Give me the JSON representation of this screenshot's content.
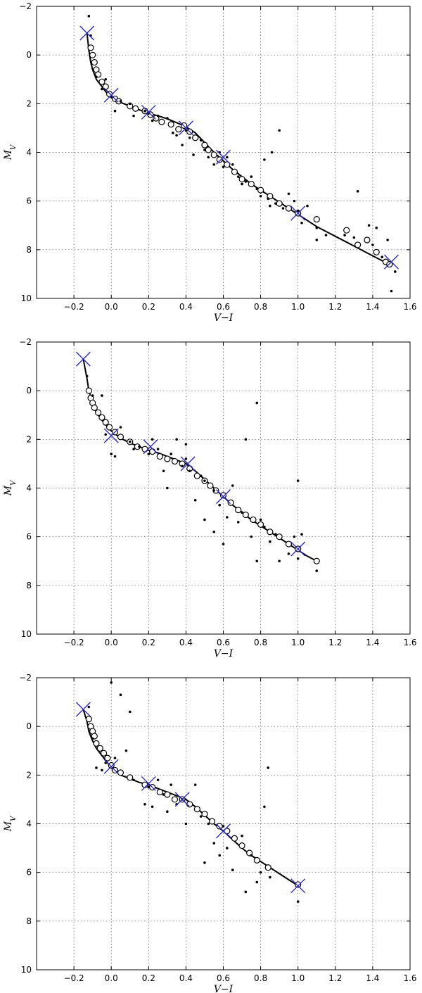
{
  "chart_data": [
    {
      "type": "scatter",
      "xlabel": "V−I",
      "ylabel": "M_V",
      "xlim": [
        -0.4,
        1.6
      ],
      "ylim": [
        10,
        -2
      ],
      "y_inverted": true,
      "grid": true,
      "xticks": [
        -0.2,
        0.0,
        0.2,
        0.4,
        0.6,
        0.8,
        1.0,
        1.2,
        1.4,
        1.6
      ],
      "yticks": [
        -2,
        0,
        2,
        4,
        6,
        8,
        10
      ],
      "series": [
        {
          "kind": "curve",
          "x": [
            -0.13,
            -0.12,
            -0.11,
            -0.1,
            -0.08,
            -0.05,
            -0.02,
            0.0,
            0.05,
            0.1,
            0.15,
            0.2,
            0.25,
            0.3,
            0.35,
            0.4,
            0.45,
            0.5,
            0.55,
            0.6,
            0.65,
            0.7,
            0.75,
            0.8,
            0.85,
            0.9,
            0.95,
            1.0,
            1.05,
            1.1,
            1.15,
            1.2,
            1.25,
            1.3,
            1.35,
            1.4,
            1.45,
            1.5
          ],
          "y": [
            -0.9,
            -0.2,
            0.3,
            0.6,
            1.0,
            1.3,
            1.6,
            1.75,
            1.95,
            2.1,
            2.25,
            2.4,
            2.5,
            2.62,
            2.78,
            2.95,
            3.2,
            3.6,
            4.0,
            4.35,
            4.7,
            5.0,
            5.3,
            5.55,
            5.8,
            6.05,
            6.3,
            6.55,
            6.8,
            7.05,
            7.25,
            7.45,
            7.65,
            7.85,
            8.05,
            8.25,
            8.45,
            8.65
          ]
        },
        {
          "kind": "open-circles",
          "x": [
            -0.11,
            -0.1,
            -0.09,
            -0.08,
            -0.07,
            -0.05,
            -0.03,
            -0.01,
            0.02,
            0.04,
            0.1,
            0.13,
            0.18,
            0.21,
            0.24,
            0.27,
            0.32,
            0.36,
            0.39,
            0.42,
            0.45,
            0.5,
            0.52,
            0.55,
            0.58,
            0.62,
            0.66,
            0.7,
            0.75,
            0.8,
            0.85,
            0.9,
            0.95,
            1.0,
            1.1,
            1.26,
            1.32,
            1.37,
            1.42,
            1.47,
            1.49
          ],
          "y": [
            -0.3,
            0.0,
            0.3,
            0.6,
            0.8,
            1.1,
            1.3,
            1.6,
            1.8,
            1.9,
            2.1,
            2.2,
            2.3,
            2.45,
            2.6,
            2.75,
            2.85,
            3.05,
            2.9,
            3.15,
            3.4,
            3.7,
            3.9,
            4.1,
            4.3,
            4.5,
            4.8,
            5.1,
            5.3,
            5.55,
            5.8,
            6.1,
            6.3,
            6.5,
            6.75,
            7.2,
            7.8,
            7.6,
            8.1,
            8.5,
            8.6
          ]
        },
        {
          "kind": "small-dots",
          "x": [
            -0.12,
            -0.11,
            -0.08,
            -0.05,
            -0.03,
            0.0,
            0.02,
            0.05,
            0.1,
            0.12,
            0.18,
            0.2,
            0.22,
            0.25,
            0.3,
            0.33,
            0.35,
            0.38,
            0.4,
            0.42,
            0.44,
            0.48,
            0.5,
            0.52,
            0.55,
            0.58,
            0.6,
            0.62,
            0.65,
            0.68,
            0.7,
            0.72,
            0.75,
            0.78,
            0.8,
            0.82,
            0.84,
            0.85,
            0.86,
            0.88,
            0.9,
            0.92,
            0.95,
            0.98,
            1.0,
            1.02,
            1.05,
            1.1,
            1.1,
            1.15,
            1.25,
            1.3,
            1.32,
            1.38,
            1.4,
            1.42,
            1.45,
            1.48,
            1.5,
            1.52
          ],
          "y": [
            -1.6,
            -0.8,
            0.9,
            1.4,
            1.0,
            1.7,
            2.3,
            1.9,
            2.0,
            2.5,
            2.3,
            2.4,
            2.7,
            2.5,
            2.6,
            3.2,
            3.3,
            3.7,
            3.1,
            3.4,
            4.1,
            3.5,
            3.9,
            4.2,
            4.5,
            4.0,
            4.6,
            4.2,
            4.5,
            5.0,
            5.3,
            5.2,
            5.0,
            5.5,
            5.8,
            4.3,
            5.9,
            6.2,
            4.0,
            6.1,
            3.1,
            6.3,
            5.7,
            6.0,
            6.4,
            6.9,
            6.2,
            7.1,
            7.6,
            7.4,
            7.4,
            7.5,
            5.6,
            7.0,
            7.8,
            7.1,
            8.3,
            7.6,
            9.7,
            8.9
          ]
        },
        {
          "kind": "crosses",
          "x": [
            -0.13,
            0.0,
            0.2,
            0.4,
            0.6,
            1.0,
            1.5
          ],
          "y": [
            -0.9,
            1.65,
            2.35,
            3.0,
            4.2,
            6.5,
            8.5
          ]
        }
      ]
    },
    {
      "type": "scatter",
      "xlabel": "V−I",
      "ylabel": "M_V",
      "xlim": [
        -0.4,
        1.6
      ],
      "ylim": [
        10,
        -2
      ],
      "y_inverted": true,
      "grid": true,
      "xticks": [
        -0.2,
        0.0,
        0.2,
        0.4,
        0.6,
        0.8,
        1.0,
        1.2,
        1.4,
        1.6
      ],
      "yticks": [
        -2,
        0,
        2,
        4,
        6,
        8,
        10
      ],
      "series": [
        {
          "kind": "curve",
          "x": [
            -0.15,
            -0.13,
            -0.12,
            -0.1,
            -0.08,
            -0.05,
            -0.02,
            0.0,
            0.05,
            0.1,
            0.15,
            0.2,
            0.25,
            0.3,
            0.35,
            0.4,
            0.45,
            0.5,
            0.55,
            0.6,
            0.65,
            0.7,
            0.75,
            0.8,
            0.85,
            0.9,
            0.95,
            1.0,
            1.05,
            1.1
          ],
          "y": [
            -1.3,
            -0.5,
            0.0,
            0.5,
            0.9,
            1.2,
            1.5,
            1.65,
            1.95,
            2.15,
            2.3,
            2.45,
            2.55,
            2.7,
            2.85,
            3.0,
            3.3,
            3.65,
            4.0,
            4.35,
            4.7,
            5.0,
            5.3,
            5.55,
            5.8,
            6.05,
            6.3,
            6.55,
            6.8,
            7.0
          ]
        },
        {
          "kind": "open-circles",
          "x": [
            -0.12,
            -0.11,
            -0.1,
            -0.09,
            -0.07,
            -0.05,
            -0.03,
            -0.01,
            0.02,
            0.05,
            0.1,
            0.14,
            0.18,
            0.22,
            0.26,
            0.3,
            0.34,
            0.38,
            0.42,
            0.46,
            0.5,
            0.53,
            0.56,
            0.6,
            0.64,
            0.68,
            0.72,
            0.76,
            0.8,
            0.85,
            0.9,
            0.95,
            1.0,
            1.1
          ],
          "y": [
            0.0,
            0.3,
            0.5,
            0.7,
            0.9,
            1.1,
            1.3,
            1.5,
            1.7,
            1.9,
            2.1,
            2.3,
            2.4,
            2.5,
            2.7,
            2.8,
            2.9,
            3.0,
            3.2,
            3.5,
            3.7,
            3.9,
            4.1,
            4.3,
            4.6,
            4.9,
            5.1,
            5.3,
            5.5,
            5.8,
            6.0,
            6.3,
            6.5,
            7.0
          ]
        },
        {
          "kind": "small-dots",
          "x": [
            -0.13,
            -0.1,
            -0.05,
            -0.03,
            0.0,
            0.02,
            0.05,
            0.1,
            0.12,
            0.15,
            0.2,
            0.22,
            0.25,
            0.28,
            0.3,
            0.32,
            0.35,
            0.38,
            0.4,
            0.4,
            0.42,
            0.45,
            0.48,
            0.5,
            0.5,
            0.55,
            0.55,
            0.58,
            0.6,
            0.62,
            0.65,
            0.68,
            0.7,
            0.72,
            0.75,
            0.78,
            0.78,
            0.8,
            0.82,
            0.85,
            0.88,
            0.9,
            0.95,
            0.98,
            1.0,
            1.0,
            1.02,
            1.1
          ],
          "y": [
            -0.6,
            0.2,
            0.2,
            1.8,
            2.6,
            2.7,
            1.5,
            2.1,
            2.4,
            2.3,
            2.6,
            2.0,
            2.4,
            3.3,
            4.0,
            2.6,
            2.0,
            3.1,
            2.2,
            2.8,
            3.3,
            4.5,
            3.5,
            5.3,
            3.7,
            5.8,
            4.1,
            4.7,
            6.3,
            5.2,
            3.9,
            5.4,
            5.0,
            2.0,
            6.0,
            0.5,
            7.0,
            5.3,
            5.6,
            6.2,
            5.9,
            7.0,
            6.7,
            6.0,
            3.7,
            6.9,
            5.9,
            7.4
          ]
        },
        {
          "kind": "crosses",
          "x": [
            -0.15,
            0.0,
            0.21,
            0.41,
            0.6,
            1.0
          ],
          "y": [
            -1.3,
            1.85,
            2.3,
            3.0,
            4.35,
            6.5
          ]
        }
      ]
    },
    {
      "type": "scatter",
      "xlabel": "V−I",
      "ylabel": "M_V",
      "xlim": [
        -0.4,
        1.6
      ],
      "ylim": [
        10,
        -2
      ],
      "y_inverted": true,
      "grid": true,
      "xticks": [
        -0.2,
        0.0,
        0.2,
        0.4,
        0.6,
        0.8,
        1.0,
        1.2,
        1.4,
        1.6
      ],
      "yticks": [
        -2,
        0,
        2,
        4,
        6,
        8,
        10
      ],
      "series": [
        {
          "kind": "curve",
          "x": [
            -0.15,
            -0.13,
            -0.12,
            -0.1,
            -0.08,
            -0.05,
            -0.02,
            0.0,
            0.05,
            0.1,
            0.15,
            0.2,
            0.25,
            0.3,
            0.35,
            0.4,
            0.45,
            0.5,
            0.55,
            0.6,
            0.65,
            0.7,
            0.75,
            0.8,
            0.85,
            0.9,
            0.95,
            1.0
          ],
          "y": [
            -0.7,
            -0.2,
            0.2,
            0.6,
            0.9,
            1.2,
            1.5,
            1.7,
            2.0,
            2.15,
            2.3,
            2.4,
            2.55,
            2.7,
            2.85,
            3.0,
            3.3,
            3.65,
            4.0,
            4.3,
            4.65,
            5.0,
            5.3,
            5.55,
            5.8,
            6.05,
            6.3,
            6.55
          ]
        },
        {
          "kind": "open-circles",
          "x": [
            -0.12,
            -0.11,
            -0.1,
            -0.09,
            -0.08,
            -0.06,
            -0.04,
            -0.02,
            0.0,
            0.02,
            0.05,
            0.1,
            0.18,
            0.22,
            0.26,
            0.3,
            0.34,
            0.38,
            0.42,
            0.46,
            0.5,
            0.54,
            0.58,
            0.62,
            0.66,
            0.7,
            0.74,
            0.78,
            0.84,
            1.0
          ],
          "y": [
            -0.3,
            0.0,
            0.2,
            0.4,
            0.7,
            0.9,
            1.1,
            1.3,
            1.6,
            1.8,
            1.9,
            2.1,
            2.4,
            2.5,
            2.7,
            2.8,
            3.0,
            3.0,
            3.2,
            3.4,
            3.6,
            3.9,
            4.1,
            4.3,
            4.6,
            4.9,
            5.2,
            5.5,
            5.8,
            6.5
          ]
        },
        {
          "kind": "small-dots",
          "x": [
            -0.12,
            -0.1,
            -0.08,
            -0.05,
            -0.03,
            0.0,
            0.02,
            0.05,
            0.08,
            0.1,
            0.12,
            0.18,
            0.2,
            0.22,
            0.25,
            0.28,
            0.3,
            0.32,
            0.35,
            0.38,
            0.4,
            0.45,
            0.48,
            0.5,
            0.52,
            0.55,
            0.58,
            0.6,
            0.62,
            0.65,
            0.7,
            0.72,
            0.75,
            0.78,
            0.8,
            0.82,
            0.84,
            0.85,
            1.0
          ],
          "y": [
            -0.8,
            0.5,
            1.7,
            1.8,
            1.5,
            -1.8,
            1.3,
            -1.3,
            1.0,
            -0.6,
            2.2,
            3.2,
            2.5,
            3.3,
            2.2,
            2.8,
            3.5,
            2.4,
            3.2,
            3.0,
            4.0,
            2.4,
            3.7,
            5.6,
            4.0,
            4.8,
            5.3,
            4.1,
            5.0,
            5.9,
            4.5,
            6.8,
            5.3,
            6.4,
            6.0,
            3.3,
            1.7,
            6.2,
            7.2
          ]
        },
        {
          "kind": "crosses",
          "x": [
            -0.15,
            0.0,
            0.2,
            0.38,
            0.6,
            1.0
          ],
          "y": [
            -0.7,
            1.65,
            2.35,
            3.0,
            4.3,
            6.55
          ]
        }
      ]
    }
  ]
}
